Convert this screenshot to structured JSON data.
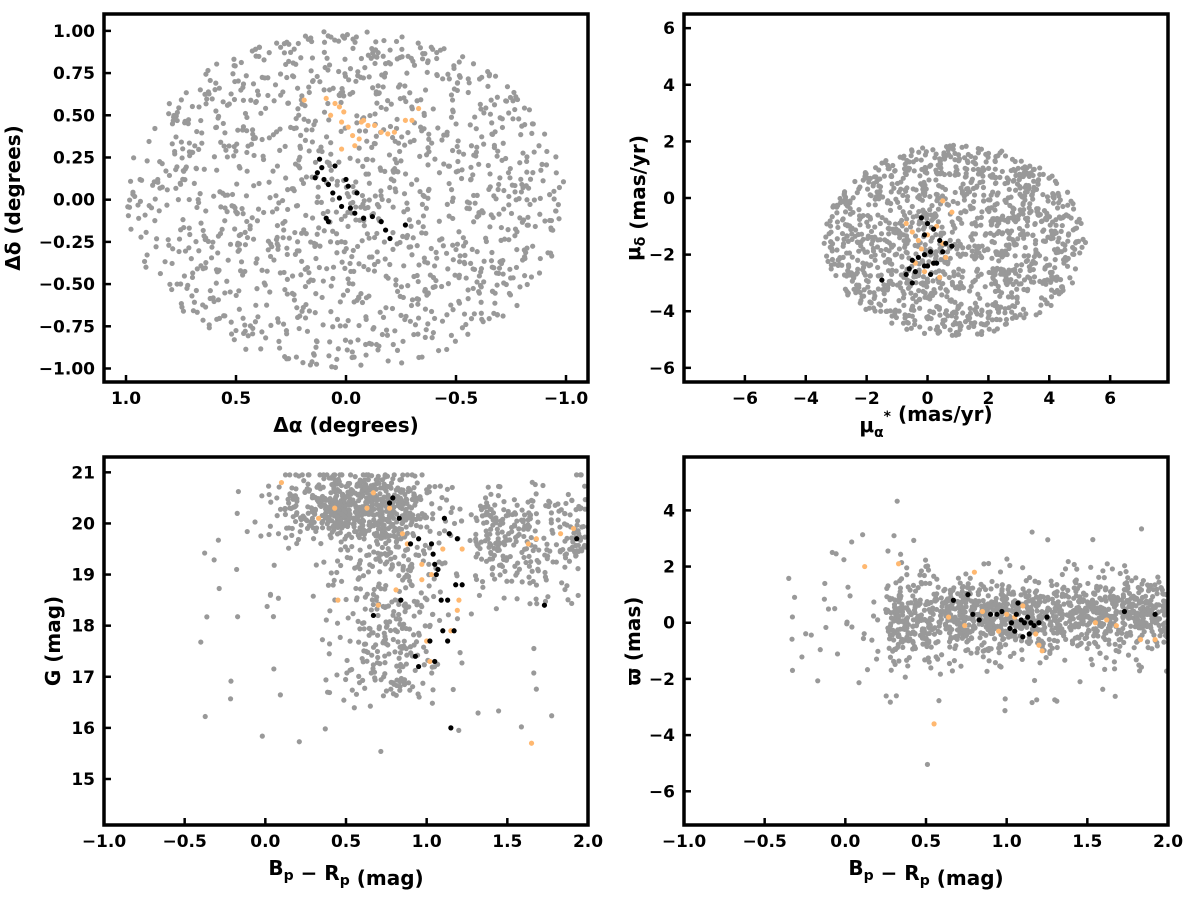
{
  "chart_data": [
    {
      "type": "scatter",
      "xlabel": "Δα (degrees)",
      "ylabel": "Δδ (degrees)",
      "xlim": [
        1.1,
        -1.1
      ],
      "ylim": [
        -1.08,
        1.1
      ],
      "xticks": [
        1.0,
        0.5,
        0.0,
        -0.5,
        -1.0
      ],
      "xtick_labels": [
        "1.0",
        "0.5",
        "0.0",
        "−0.5",
        "−1.0"
      ],
      "yticks": [
        -1.0,
        -0.75,
        -0.5,
        -0.25,
        0.0,
        0.25,
        0.5,
        0.75,
        1.0
      ],
      "ytick_labels": [
        "−1.00",
        "−0.75",
        "−0.50",
        "−0.25",
        "0.00",
        "0.25",
        "0.50",
        "0.75",
        "1.00"
      ],
      "grid": false,
      "series": [
        {
          "color": "#999999",
          "field": {
            "shape": "disk",
            "center": [
              0.0,
              0.0
            ],
            "radius": [
              1.0,
              1.0
            ],
            "count": 1300
          }
        },
        {
          "color": "#FFB870",
          "points": [
            [
              0.09,
              0.6
            ],
            [
              0.05,
              0.57
            ],
            [
              0.03,
              0.55
            ],
            [
              0.01,
              0.52
            ],
            [
              0.07,
              0.5
            ],
            [
              0.02,
              0.46
            ],
            [
              -0.01,
              0.43
            ],
            [
              -0.03,
              0.38
            ],
            [
              -0.04,
              0.32
            ],
            [
              -0.06,
              0.36
            ],
            [
              -0.07,
              0.46
            ],
            [
              -0.08,
              0.47
            ],
            [
              -0.1,
              0.44
            ],
            [
              -0.13,
              0.44
            ],
            [
              -0.16,
              0.4
            ],
            [
              -0.19,
              0.39
            ],
            [
              -0.22,
              0.4
            ],
            [
              -0.27,
              0.47
            ],
            [
              -0.3,
              0.47
            ],
            [
              -0.33,
              0.54
            ],
            [
              0.02,
              0.3
            ],
            [
              0.19,
              0.59
            ]
          ]
        },
        {
          "color": "#000000",
          "points": [
            [
              0.12,
              0.24
            ],
            [
              0.11,
              0.19
            ],
            [
              0.13,
              0.16
            ],
            [
              0.14,
              0.13
            ],
            [
              0.1,
              0.12
            ],
            [
              0.08,
              0.09
            ],
            [
              0.05,
              0.2
            ],
            [
              0.06,
              0.04
            ],
            [
              0.03,
              0.01
            ],
            [
              0.02,
              -0.04
            ],
            [
              0.0,
              0.12
            ],
            [
              -0.01,
              0.08
            ],
            [
              -0.02,
              -0.05
            ],
            [
              -0.04,
              -0.08
            ],
            [
              -0.05,
              0.04
            ],
            [
              -0.08,
              -0.11
            ],
            [
              -0.12,
              -0.1
            ],
            [
              -0.16,
              -0.13
            ],
            [
              -0.18,
              -0.18
            ],
            [
              -0.2,
              -0.23
            ],
            [
              -0.27,
              -0.15
            ],
            [
              0.09,
              -0.11
            ],
            [
              0.08,
              -0.13
            ]
          ]
        }
      ]
    },
    {
      "type": "scatter",
      "xlabel": "μα* (mas/yr)",
      "ylabel": "μδ (mas/yr)",
      "xlim": [
        -8.0,
        7.9
      ],
      "ylim": [
        -6.5,
        6.5
      ],
      "xticks": [
        -6,
        -4,
        -2,
        0,
        2,
        4,
        6
      ],
      "xtick_labels": [
        "−6",
        "−4",
        "−2",
        "0",
        "2",
        "4",
        "6"
      ],
      "yticks": [
        -6,
        -4,
        -2,
        0,
        2,
        4,
        6
      ],
      "ytick_labels": [
        "−6",
        "−4",
        "−2",
        "0",
        "2",
        "4",
        "6"
      ],
      "grid": false,
      "series": [
        {
          "color": "#999999",
          "field": {
            "shape": "disk",
            "center": [
              0.9,
              -1.5
            ],
            "radius": [
              4.3,
              3.4
            ],
            "count": 1300
          }
        },
        {
          "color": "#FFB870",
          "points": [
            [
              -0.7,
              -0.9
            ],
            [
              -0.5,
              -1.2
            ],
            [
              -0.2,
              -1.8
            ],
            [
              0.0,
              -1.3
            ],
            [
              0.3,
              -1.0
            ],
            [
              0.5,
              -1.6
            ],
            [
              0.6,
              -2.1
            ],
            [
              0.8,
              -0.5
            ],
            [
              -0.1,
              -2.6
            ],
            [
              0.4,
              -2.8
            ],
            [
              -0.4,
              -2.3
            ],
            [
              0.2,
              -2.3
            ],
            [
              -0.3,
              -1.5
            ],
            [
              0.5,
              -0.1
            ]
          ]
        },
        {
          "color": "#000000",
          "points": [
            [
              -0.2,
              -0.7
            ],
            [
              0.0,
              -0.9
            ],
            [
              -0.1,
              -1.3
            ],
            [
              0.2,
              -1.1
            ],
            [
              0.4,
              -1.5
            ],
            [
              0.6,
              -1.6
            ],
            [
              0.5,
              -1.9
            ],
            [
              0.1,
              -1.9
            ],
            [
              -0.1,
              -2.0
            ],
            [
              -0.3,
              -2.1
            ],
            [
              -0.5,
              -2.2
            ],
            [
              0.2,
              -2.3
            ],
            [
              0.3,
              -2.3
            ],
            [
              0.0,
              -2.4
            ],
            [
              -0.4,
              -2.6
            ],
            [
              -0.6,
              -2.5
            ],
            [
              -0.7,
              -2.7
            ],
            [
              0.1,
              -2.7
            ],
            [
              -0.5,
              -3.0
            ],
            [
              -1.5,
              -2.9
            ],
            [
              0.0,
              -2.4
            ],
            [
              -0.1,
              -2.4
            ],
            [
              0.8,
              -1.7
            ]
          ]
        }
      ]
    },
    {
      "type": "scatter",
      "xlabel": "Bp − Rp (mag)",
      "ylabel": "G (mag)",
      "xlim": [
        -1.0,
        2.0
      ],
      "ylim": [
        14.1,
        21.3
      ],
      "y_inverted": false,
      "xticks": [
        -1.0,
        -0.5,
        0.0,
        0.5,
        1.0,
        1.5,
        2.0
      ],
      "xtick_labels": [
        "−1.0",
        "−0.5",
        "0.0",
        "0.5",
        "1.0",
        "1.5",
        "2.0"
      ],
      "yticks": [
        15,
        16,
        17,
        18,
        19,
        20,
        21
      ],
      "ytick_labels": [
        "15",
        "16",
        "17",
        "18",
        "19",
        "20",
        "21"
      ],
      "grid": false,
      "series": [
        {
          "color": "#999999",
          "field": {
            "shape": "cmd",
            "count": 1300
          }
        },
        {
          "color": "#FFB870",
          "points": [
            [
              0.1,
              20.8
            ],
            [
              0.33,
              20.1
            ],
            [
              0.43,
              20.3
            ],
            [
              0.63,
              20.3
            ],
            [
              0.67,
              20.6
            ],
            [
              0.77,
              20.3
            ],
            [
              0.85,
              19.8
            ],
            [
              0.88,
              19.6
            ],
            [
              0.97,
              19.2
            ],
            [
              1.03,
              19.0
            ],
            [
              1.1,
              19.5
            ],
            [
              1.19,
              18.3
            ],
            [
              1.2,
              18.5
            ],
            [
              1.22,
              19.5
            ],
            [
              0.97,
              18.9
            ],
            [
              0.81,
              18.7
            ],
            [
              1.63,
              19.6
            ],
            [
              1.68,
              19.7
            ],
            [
              1.83,
              19.8
            ],
            [
              1.91,
              19.9
            ],
            [
              0.45,
              18.5
            ],
            [
              0.7,
              18.4
            ],
            [
              1.0,
              17.7
            ],
            [
              1.02,
              17.3
            ],
            [
              1.65,
              15.7
            ],
            [
              1.15,
              17.9
            ]
          ]
        },
        {
          "color": "#000000",
          "points": [
            [
              0.77,
              20.4
            ],
            [
              0.79,
              20.5
            ],
            [
              0.83,
              20.1
            ],
            [
              0.9,
              19.6
            ],
            [
              0.95,
              19.7
            ],
            [
              1.03,
              19.6
            ],
            [
              1.04,
              19.4
            ],
            [
              1.05,
              19.2
            ],
            [
              1.07,
              19.1
            ],
            [
              1.06,
              19.0
            ],
            [
              1.11,
              20.1
            ],
            [
              1.14,
              19.8
            ],
            [
              1.18,
              18.8
            ],
            [
              1.22,
              18.8
            ],
            [
              1.09,
              18.5
            ],
            [
              1.13,
              18.5
            ],
            [
              0.67,
              18.2
            ],
            [
              0.84,
              18.5
            ],
            [
              1.1,
              17.9
            ],
            [
              1.17,
              17.9
            ],
            [
              1.13,
              17.7
            ],
            [
              1.02,
              17.7
            ],
            [
              0.93,
              17.4
            ],
            [
              0.95,
              17.2
            ],
            [
              1.05,
              17.3
            ],
            [
              1.15,
              16.0
            ],
            [
              1.73,
              18.4
            ],
            [
              1.93,
              19.7
            ],
            [
              1.19,
              19.7
            ]
          ]
        }
      ]
    },
    {
      "type": "scatter",
      "xlabel": "Bp − Rp (mag)",
      "ylabel": "ϖ (mas)",
      "xlim": [
        -1.0,
        2.0
      ],
      "ylim": [
        -7.2,
        5.9
      ],
      "xticks": [
        -1.0,
        -0.5,
        0.0,
        0.5,
        1.0,
        1.5,
        2.0
      ],
      "xtick_labels": [
        "−1.0",
        "−0.5",
        "0.0",
        "0.5",
        "1.0",
        "1.5",
        "2.0"
      ],
      "yticks": [
        -6,
        -4,
        -2,
        0,
        2,
        4
      ],
      "ytick_labels": [
        "−6",
        "−4",
        "−2",
        "0",
        "2",
        "4"
      ],
      "grid": false,
      "series": [
        {
          "color": "#999999",
          "field": {
            "shape": "band",
            "count": 1300
          }
        },
        {
          "color": "#FFB870",
          "points": [
            [
              0.12,
              2.0
            ],
            [
              0.33,
              2.1
            ],
            [
              0.55,
              -3.6
            ],
            [
              0.64,
              0.2
            ],
            [
              0.74,
              -0.1
            ],
            [
              0.8,
              1.8
            ],
            [
              0.85,
              0.4
            ],
            [
              0.95,
              -0.3
            ],
            [
              1.0,
              0.3
            ],
            [
              1.05,
              0.2
            ],
            [
              1.1,
              0.6
            ],
            [
              1.18,
              -0.4
            ],
            [
              1.2,
              -0.8
            ],
            [
              1.22,
              -1.0
            ],
            [
              1.55,
              0.0
            ],
            [
              1.62,
              0.1
            ],
            [
              1.68,
              -0.1
            ],
            [
              1.83,
              -0.6
            ],
            [
              1.92,
              -0.6
            ]
          ]
        },
        {
          "color": "#000000",
          "points": [
            [
              0.67,
              0.8
            ],
            [
              0.76,
              1.0
            ],
            [
              0.79,
              0.3
            ],
            [
              0.83,
              0.1
            ],
            [
              0.9,
              0.3
            ],
            [
              0.94,
              0.3
            ],
            [
              0.97,
              0.4
            ],
            [
              1.02,
              -0.2
            ],
            [
              1.05,
              -0.3
            ],
            [
              1.06,
              0.3
            ],
            [
              1.09,
              0.1
            ],
            [
              1.11,
              0.0
            ],
            [
              1.13,
              0.2
            ],
            [
              1.17,
              -0.1
            ],
            [
              1.2,
              0.0
            ],
            [
              1.25,
              0.2
            ],
            [
              1.1,
              -0.5
            ],
            [
              1.07,
              0.7
            ],
            [
              1.15,
              0.0
            ],
            [
              1.73,
              0.4
            ],
            [
              1.92,
              0.3
            ],
            [
              1.14,
              -0.4
            ],
            [
              1.03,
              0.0
            ]
          ]
        }
      ]
    }
  ]
}
